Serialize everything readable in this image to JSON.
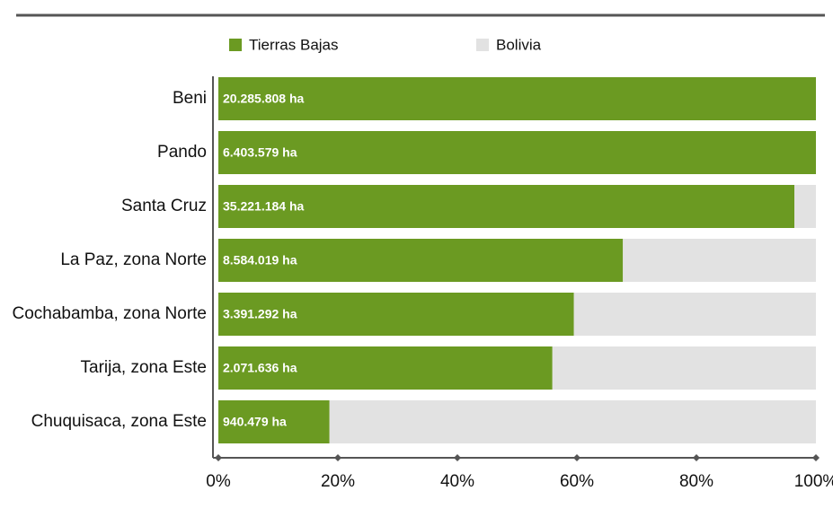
{
  "chart_data": {
    "type": "stacked_barh",
    "categories": [
      "Beni",
      "Pando",
      "Santa Cruz",
      "La Paz, zona Norte",
      "Cochabamba, zona Norte",
      "Tarija, zona Este",
      "Chuquisaca, zona Este"
    ],
    "series": [
      {
        "name": "Tierras Bajas",
        "color": "#6b9a22",
        "values": [
          100,
          100,
          96.4,
          67.7,
          59.5,
          55.9,
          18.6
        ]
      },
      {
        "name": "Bolivia",
        "color": "#e2e2e2",
        "values": [
          0,
          0,
          3.6,
          32.3,
          40.5,
          44.1,
          81.4
        ]
      }
    ],
    "bar_labels": [
      "20.285.808 ha",
      "6.403.579 ha",
      "35.221.184 ha",
      "8.584.019 ha",
      "3.391.292 ha",
      "2.071.636 ha",
      "940.479 ha"
    ],
    "xlim": [
      0,
      100
    ],
    "xticks": [
      {
        "value": 0,
        "label": "0%"
      },
      {
        "value": 20,
        "label": "20%"
      },
      {
        "value": 40,
        "label": "40%"
      },
      {
        "value": 60,
        "label": "60%"
      },
      {
        "value": 80,
        "label": "80%"
      },
      {
        "value": 100,
        "label": "100%"
      }
    ],
    "legend": "top"
  }
}
